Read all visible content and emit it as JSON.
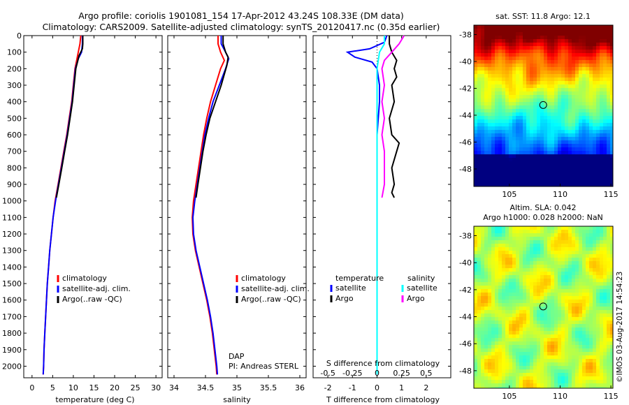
{
  "header": {
    "line1": "Argo profile: coriolis 1901081_154 17-Apr-2012 43.24S 108.33E (DM data)",
    "line2": "Climatology: CARS2009. Satellite-adjusted climatology: synTS_20120417.nc (0.35d earlier)"
  },
  "colors": {
    "climatology": "#ff0000",
    "satellite": "#0000ff",
    "argo": "#000000",
    "sal_satellite": "#00ffff",
    "sal_argo": "#ff00ff"
  },
  "chart_data": [
    {
      "type": "line",
      "id": "temperature",
      "xlabel": "temperature (deg C)",
      "ylabel": "",
      "xlim": [
        -2,
        31.5
      ],
      "ylim": [
        2070,
        0
      ],
      "xticks": [
        0,
        5,
        10,
        15,
        20,
        25,
        30
      ],
      "yticks": [
        0,
        100,
        200,
        300,
        400,
        500,
        600,
        700,
        800,
        900,
        1000,
        1100,
        1200,
        1300,
        1400,
        1500,
        1600,
        1700,
        1800,
        1900,
        2000
      ],
      "legend": [
        "climatology",
        "satellite-adj. clim.",
        "Argo(..raw -QC)"
      ],
      "series": [
        {
          "name": "climatology",
          "color": "#ff0000",
          "points": [
            [
              11.8,
              0
            ],
            [
              11.6,
              50
            ],
            [
              11.2,
              100
            ],
            [
              10.8,
              150
            ],
            [
              10.4,
              200
            ],
            [
              10.0,
              300
            ],
            [
              9.6,
              400
            ],
            [
              9.0,
              500
            ],
            [
              8.4,
              600
            ],
            [
              7.7,
              700
            ],
            [
              7.0,
              800
            ],
            [
              6.3,
              900
            ],
            [
              5.6,
              1000
            ],
            [
              5.1,
              1100
            ],
            [
              4.7,
              1200
            ],
            [
              4.3,
              1300
            ],
            [
              4.0,
              1400
            ],
            [
              3.7,
              1500
            ],
            [
              3.5,
              1600
            ],
            [
              3.3,
              1700
            ],
            [
              3.1,
              1800
            ],
            [
              2.9,
              1900
            ],
            [
              2.8,
              2000
            ],
            [
              2.7,
              2050
            ]
          ]
        },
        {
          "name": "satellite-adj. clim.",
          "color": "#0000ff",
          "points": [
            [
              12.2,
              0
            ],
            [
              12.2,
              50
            ],
            [
              12.0,
              100
            ],
            [
              11.2,
              140
            ],
            [
              10.5,
              200
            ],
            [
              10.1,
              300
            ],
            [
              9.7,
              400
            ],
            [
              9.1,
              500
            ],
            [
              8.5,
              600
            ],
            [
              7.8,
              700
            ],
            [
              7.1,
              800
            ],
            [
              6.4,
              900
            ],
            [
              5.7,
              1000
            ],
            [
              5.1,
              1100
            ],
            [
              4.7,
              1200
            ],
            [
              4.3,
              1300
            ],
            [
              4.0,
              1400
            ],
            [
              3.7,
              1500
            ],
            [
              3.5,
              1600
            ],
            [
              3.3,
              1700
            ],
            [
              3.1,
              1800
            ],
            [
              2.9,
              1900
            ],
            [
              2.8,
              2000
            ],
            [
              2.7,
              2050
            ]
          ]
        },
        {
          "name": "Argo(..raw -QC)",
          "color": "#000000",
          "points": [
            [
              12.3,
              0
            ],
            [
              12.3,
              50
            ],
            [
              12.2,
              80
            ],
            [
              11.4,
              120
            ],
            [
              10.6,
              200
            ],
            [
              10.2,
              300
            ],
            [
              9.8,
              400
            ],
            [
              9.2,
              500
            ],
            [
              8.6,
              600
            ],
            [
              7.9,
              700
            ],
            [
              7.2,
              800
            ],
            [
              6.5,
              900
            ],
            [
              5.9,
              980
            ]
          ]
        }
      ]
    },
    {
      "type": "line",
      "id": "salinity",
      "xlabel": "salinity",
      "xlim": [
        33.9,
        36.1
      ],
      "ylim": [
        2070,
        0
      ],
      "xticks": [
        34,
        34.5,
        35,
        35.5,
        36
      ],
      "legend": [
        "climatology",
        "satellite-adj. clim.",
        "Argo(..raw -QC)"
      ],
      "annotation": [
        "DAP",
        "PI: Andreas STERL"
      ],
      "series": [
        {
          "name": "climatology",
          "color": "#ff0000",
          "points": [
            [
              34.7,
              0
            ],
            [
              34.7,
              50
            ],
            [
              34.74,
              100
            ],
            [
              34.8,
              150
            ],
            [
              34.74,
              200
            ],
            [
              34.66,
              300
            ],
            [
              34.58,
              400
            ],
            [
              34.52,
              500
            ],
            [
              34.47,
              600
            ],
            [
              34.43,
              700
            ],
            [
              34.39,
              800
            ],
            [
              34.35,
              900
            ],
            [
              34.31,
              1000
            ],
            [
              34.29,
              1100
            ],
            [
              34.3,
              1200
            ],
            [
              34.34,
              1300
            ],
            [
              34.4,
              1400
            ],
            [
              34.46,
              1500
            ],
            [
              34.52,
              1600
            ],
            [
              34.57,
              1700
            ],
            [
              34.61,
              1800
            ],
            [
              34.64,
              1900
            ],
            [
              34.67,
              2000
            ],
            [
              34.68,
              2050
            ]
          ]
        },
        {
          "name": "satellite-adj. clim.",
          "color": "#0000ff",
          "points": [
            [
              34.75,
              0
            ],
            [
              34.75,
              50
            ],
            [
              34.82,
              100
            ],
            [
              34.87,
              140
            ],
            [
              34.82,
              200
            ],
            [
              34.72,
              300
            ],
            [
              34.62,
              400
            ],
            [
              34.55,
              500
            ],
            [
              34.49,
              600
            ],
            [
              34.45,
              700
            ],
            [
              34.41,
              800
            ],
            [
              34.37,
              900
            ],
            [
              34.33,
              1000
            ],
            [
              34.3,
              1100
            ],
            [
              34.31,
              1200
            ],
            [
              34.35,
              1300
            ],
            [
              34.41,
              1400
            ],
            [
              34.47,
              1500
            ],
            [
              34.53,
              1600
            ],
            [
              34.58,
              1700
            ],
            [
              34.62,
              1800
            ],
            [
              34.65,
              1900
            ],
            [
              34.68,
              2000
            ],
            [
              34.69,
              2050
            ]
          ]
        },
        {
          "name": "Argo(..raw -QC)",
          "color": "#000000",
          "points": [
            [
              34.78,
              0
            ],
            [
              34.78,
              50
            ],
            [
              34.82,
              100
            ],
            [
              34.86,
              130
            ],
            [
              34.84,
              180
            ],
            [
              34.75,
              300
            ],
            [
              34.66,
              400
            ],
            [
              34.57,
              500
            ],
            [
              34.51,
              600
            ],
            [
              34.46,
              700
            ],
            [
              34.42,
              800
            ],
            [
              34.38,
              900
            ],
            [
              34.35,
              980
            ]
          ]
        }
      ]
    },
    {
      "type": "line",
      "id": "differences",
      "xlabel": "T difference from climatology",
      "xlim": [
        -2.6,
        3.0
      ],
      "ylim": [
        2070,
        0
      ],
      "xticks": [
        -2,
        -1,
        0,
        1,
        2
      ],
      "secondary_label": "S difference from climatology",
      "secondary_ticks": [
        "-0.5",
        "-0.25",
        "0",
        "0.25",
        "0.5"
      ],
      "legend_headers": [
        "temperature",
        "salinity"
      ],
      "legend": [
        "satellite",
        "Argo",
        "satellite",
        "Argo"
      ],
      "series": [
        {
          "name": "temperature satellite",
          "color": "#0000ff",
          "points": [
            [
              0.4,
              0
            ],
            [
              0.3,
              40
            ],
            [
              -0.3,
              80
            ],
            [
              -1.2,
              100
            ],
            [
              -0.9,
              130
            ],
            [
              -0.2,
              160
            ],
            [
              0.0,
              200
            ],
            [
              0.1,
              300
            ],
            [
              0.1,
              400
            ],
            [
              0.0,
              600
            ],
            [
              0.0,
              800
            ],
            [
              0.0,
              1000
            ],
            [
              0.0,
              1200
            ],
            [
              0.0,
              1500
            ],
            [
              0.0,
              1800
            ],
            [
              0.0,
              2050
            ]
          ]
        },
        {
          "name": "temperature Argo",
          "color": "#000000",
          "points": [
            [
              0.5,
              0
            ],
            [
              0.5,
              50
            ],
            [
              0.6,
              100
            ],
            [
              0.8,
              150
            ],
            [
              0.7,
              200
            ],
            [
              0.8,
              250
            ],
            [
              0.6,
              300
            ],
            [
              0.7,
              400
            ],
            [
              0.5,
              500
            ],
            [
              0.6,
              600
            ],
            [
              0.9,
              650
            ],
            [
              0.8,
              700
            ],
            [
              0.6,
              800
            ],
            [
              0.7,
              900
            ],
            [
              0.6,
              950
            ],
            [
              0.7,
              980
            ]
          ]
        },
        {
          "name": "salinity satellite",
          "color": "#00ffff",
          "points": [
            [
              0.3,
              0
            ],
            [
              0.3,
              50
            ],
            [
              0.1,
              100
            ],
            [
              0.0,
              200
            ],
            [
              0.0,
              400
            ],
            [
              0.0,
              600
            ],
            [
              0.0,
              800
            ],
            [
              0.0,
              1000
            ],
            [
              0.0,
              1200
            ],
            [
              0.0,
              1500
            ],
            [
              0.0,
              1800
            ],
            [
              0.0,
              2050
            ]
          ]
        },
        {
          "name": "salinity Argo",
          "color": "#ff00ff",
          "points": [
            [
              1.1,
              0
            ],
            [
              0.9,
              50
            ],
            [
              0.6,
              100
            ],
            [
              0.3,
              150
            ],
            [
              0.2,
              200
            ],
            [
              0.3,
              300
            ],
            [
              0.2,
              400
            ],
            [
              0.3,
              500
            ],
            [
              0.2,
              600
            ],
            [
              0.3,
              700
            ],
            [
              0.3,
              800
            ],
            [
              0.3,
              900
            ],
            [
              0.2,
              980
            ]
          ]
        }
      ]
    },
    {
      "type": "heatmap",
      "id": "sst-map",
      "title": "sat. SST: 11.8 Argo: 12.1",
      "xlim": [
        101.5,
        115.2
      ],
      "ylim": [
        -49.3,
        -37.3
      ],
      "xticks": [
        105,
        110,
        115
      ],
      "yticks": [
        -38,
        -40,
        -42,
        -44,
        -46,
        -48
      ],
      "marker": [
        108.33,
        -43.24
      ]
    },
    {
      "type": "heatmap",
      "id": "sla-map",
      "title": [
        "Altim. SLA: 0.042",
        "Argo h1000: 0.028 h2000: NaN"
      ],
      "xlim": [
        101.5,
        115.2
      ],
      "ylim": [
        -49.3,
        -37.3
      ],
      "xticks": [
        105,
        110,
        115
      ],
      "yticks": [
        -38,
        -40,
        -42,
        -44,
        -46,
        -48
      ],
      "marker": [
        108.33,
        -43.24
      ]
    }
  ],
  "credit": "©IMOS 03-Aug-2017 14:54:23"
}
